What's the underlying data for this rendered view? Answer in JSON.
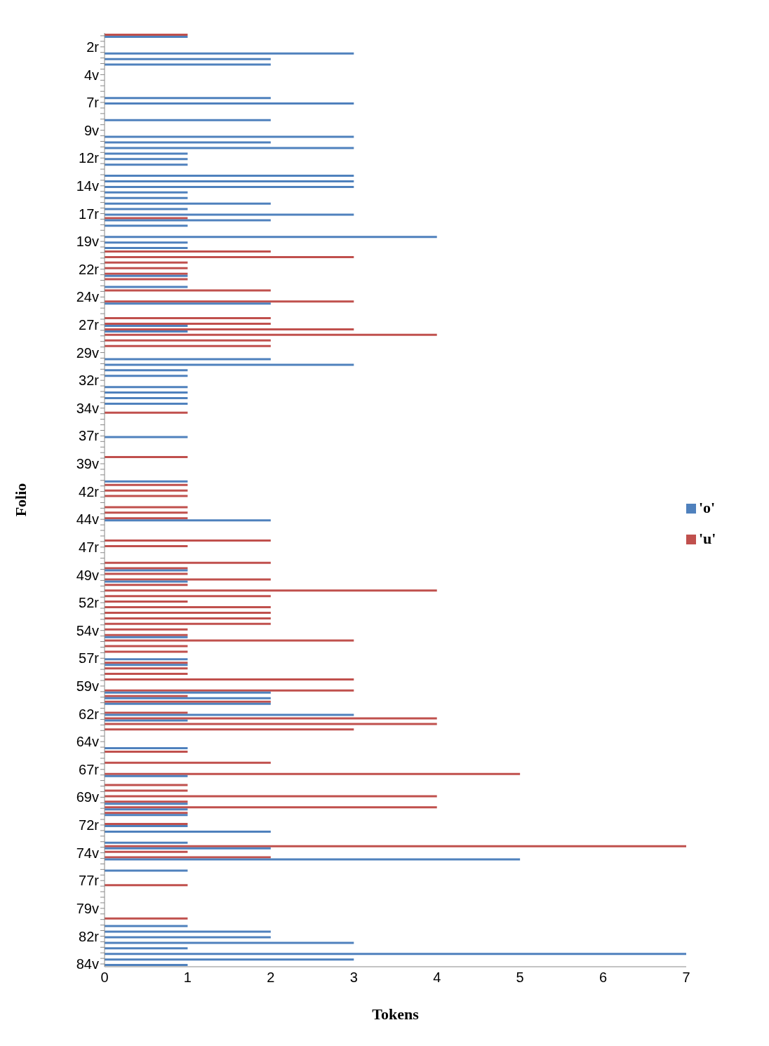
{
  "chart_data": {
    "type": "bar",
    "orientation": "horizontal",
    "xlabel": "Tokens",
    "ylabel": "Folio",
    "legend": "right",
    "xlim": [
      0,
      7
    ],
    "xticks": [
      0,
      1,
      2,
      3,
      4,
      5,
      6,
      7
    ],
    "categories": [
      null,
      null,
      "2r",
      null,
      null,
      null,
      null,
      "4v",
      null,
      null,
      null,
      null,
      "7r",
      null,
      null,
      null,
      null,
      "9v",
      null,
      null,
      null,
      null,
      "12r",
      null,
      null,
      null,
      null,
      "14v",
      null,
      null,
      null,
      null,
      "17r",
      null,
      null,
      null,
      null,
      "19v",
      null,
      null,
      null,
      null,
      "22r",
      null,
      null,
      null,
      null,
      "24v",
      null,
      null,
      null,
      null,
      "27r",
      null,
      null,
      null,
      null,
      "29v",
      null,
      null,
      null,
      null,
      "32r",
      null,
      null,
      null,
      null,
      "34v",
      null,
      null,
      null,
      null,
      "37r",
      null,
      null,
      null,
      null,
      "39v",
      null,
      null,
      null,
      null,
      "42r",
      null,
      null,
      null,
      null,
      "44v",
      null,
      null,
      null,
      null,
      "47r",
      null,
      null,
      null,
      null,
      "49v",
      null,
      null,
      null,
      null,
      "52r",
      null,
      null,
      null,
      null,
      "54v",
      null,
      null,
      null,
      null,
      "57r",
      null,
      null,
      null,
      null,
      "59v ",
      null,
      null,
      null,
      null,
      "62r",
      null,
      null,
      null,
      null,
      "64v",
      null,
      null,
      null,
      null,
      "67r",
      null,
      null,
      null,
      null,
      "69v",
      null,
      null,
      null,
      null,
      "72r",
      null,
      null,
      null,
      null,
      "74v",
      null,
      null,
      null,
      null,
      "77r",
      null,
      null,
      null,
      null,
      "79v",
      null,
      null,
      null,
      null,
      "82r",
      null,
      null,
      null,
      null,
      "84v"
    ],
    "series": [
      {
        "name": "'u'",
        "color": "#c0504d",
        "values": [
          1,
          0,
          0,
          0,
          0,
          0,
          0,
          0,
          0,
          0,
          0,
          0,
          0,
          0,
          0,
          0,
          0,
          0,
          0,
          0,
          0,
          0,
          0,
          0,
          0,
          0,
          0,
          0,
          0,
          0,
          0,
          0,
          0,
          1,
          0,
          0,
          0,
          0,
          0,
          2,
          3,
          1,
          1,
          1,
          1,
          0,
          2,
          0,
          3,
          0,
          0,
          2,
          2,
          3,
          4,
          2,
          2,
          0,
          0,
          0,
          0,
          0,
          0,
          0,
          0,
          0,
          0,
          0,
          1,
          0,
          0,
          0,
          0,
          0,
          0,
          0,
          1,
          0,
          0,
          0,
          0,
          1,
          1,
          1,
          0,
          1,
          1,
          1,
          0,
          0,
          0,
          2,
          1,
          0,
          0,
          2,
          1,
          1,
          2,
          1,
          4,
          2,
          1,
          2,
          2,
          2,
          2,
          1,
          1,
          3,
          1,
          1,
          0,
          1,
          1,
          1,
          3,
          0,
          3,
          1,
          2,
          0,
          1,
          4,
          4,
          3,
          0,
          0,
          0,
          1,
          0,
          2,
          0,
          5,
          0,
          1,
          1,
          4,
          1,
          4,
          1,
          0,
          1,
          0,
          0,
          0,
          7,
          1,
          2,
          0,
          0,
          0,
          0,
          1,
          0,
          0,
          0,
          0,
          0,
          1,
          0,
          0,
          0,
          0,
          0,
          0,
          0,
          0
        ]
      },
      {
        "name": "'o'",
        "color": "#4f81bd",
        "values": [
          1,
          0,
          0,
          3,
          2,
          2,
          0,
          0,
          0,
          0,
          0,
          2,
          3,
          0,
          0,
          2,
          0,
          0,
          3,
          2,
          3,
          1,
          1,
          1,
          0,
          3,
          3,
          3,
          1,
          1,
          2,
          1,
          3,
          2,
          1,
          0,
          4,
          1,
          1,
          0,
          0,
          0,
          0,
          1,
          0,
          1,
          0,
          0,
          2,
          0,
          0,
          0,
          1,
          1,
          0,
          0,
          0,
          0,
          2,
          3,
          1,
          1,
          0,
          1,
          1,
          1,
          1,
          0,
          0,
          0,
          0,
          0,
          1,
          0,
          0,
          0,
          0,
          0,
          0,
          0,
          1,
          0,
          0,
          0,
          0,
          0,
          0,
          2,
          0,
          0,
          0,
          0,
          0,
          0,
          0,
          0,
          1,
          0,
          1,
          0,
          0,
          0,
          0,
          0,
          0,
          0,
          0,
          0,
          1,
          0,
          0,
          0,
          1,
          1,
          0,
          0,
          0,
          0,
          2,
          2,
          2,
          0,
          3,
          1,
          0,
          0,
          0,
          0,
          1,
          0,
          0,
          0,
          0,
          1,
          0,
          0,
          0,
          0,
          1,
          1,
          1,
          0,
          1,
          2,
          0,
          1,
          2,
          0,
          5,
          0,
          1,
          0,
          0,
          0,
          0,
          0,
          0,
          0,
          0,
          0,
          1,
          2,
          2,
          3,
          1,
          7,
          3,
          1
        ]
      }
    ]
  }
}
